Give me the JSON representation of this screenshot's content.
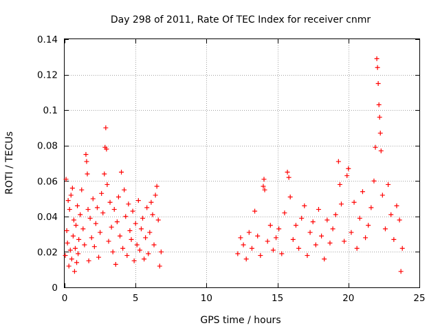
{
  "chart_data": {
    "type": "scatter",
    "title": "Day 298 of 2011, Rate Of TEC Index for receiver cnmr",
    "xlabel": "GPS time / hours",
    "ylabel": "ROTI / TECUs",
    "xlim": [
      0,
      25
    ],
    "ylim": [
      0,
      0.14
    ],
    "xticks": [
      0,
      5,
      10,
      15,
      20,
      25
    ],
    "yticks": [
      0,
      0.02,
      0.04,
      0.06,
      0.08,
      0.1,
      0.12,
      0.14
    ],
    "xtick_labels": [
      "0",
      "5",
      "10",
      "15",
      "20",
      "25"
    ],
    "ytick_labels": [
      "0",
      "0.02",
      "0.04",
      "0.06",
      "0.08",
      "0.1",
      "0.12",
      "0.14"
    ],
    "grid": true,
    "marker": "+",
    "series": [
      {
        "color": "#ff0000",
        "points": [
          [
            0.05,
            0.018
          ],
          [
            0.1,
            0.061
          ],
          [
            0.15,
            0.032
          ],
          [
            0.2,
            0.025
          ],
          [
            0.25,
            0.049
          ],
          [
            0.3,
            0.012
          ],
          [
            0.35,
            0.044
          ],
          [
            0.4,
            0.021
          ],
          [
            0.45,
            0.052
          ],
          [
            0.5,
            0.016
          ],
          [
            0.55,
            0.056
          ],
          [
            0.6,
            0.029
          ],
          [
            0.65,
            0.038
          ],
          [
            0.7,
            0.009
          ],
          [
            0.75,
            0.022
          ],
          [
            0.8,
            0.035
          ],
          [
            0.85,
            0.014
          ],
          [
            0.9,
            0.046
          ],
          [
            0.95,
            0.019
          ],
          [
            1.0,
            0.027
          ],
          [
            1.1,
            0.041
          ],
          [
            1.2,
            0.055
          ],
          [
            1.3,
            0.033
          ],
          [
            1.4,
            0.024
          ],
          [
            1.5,
            0.075
          ],
          [
            1.55,
            0.071
          ],
          [
            1.6,
            0.064
          ],
          [
            1.65,
            0.044
          ],
          [
            1.7,
            0.015
          ],
          [
            1.8,
            0.039
          ],
          [
            1.9,
            0.028
          ],
          [
            2.0,
            0.05
          ],
          [
            2.1,
            0.023
          ],
          [
            2.2,
            0.036
          ],
          [
            2.3,
            0.045
          ],
          [
            2.4,
            0.017
          ],
          [
            2.5,
            0.031
          ],
          [
            2.6,
            0.053
          ],
          [
            2.7,
            0.042
          ],
          [
            2.8,
            0.064
          ],
          [
            2.85,
            0.079
          ],
          [
            2.9,
            0.09
          ],
          [
            2.95,
            0.078
          ],
          [
            3.0,
            0.058
          ],
          [
            3.1,
            0.026
          ],
          [
            3.2,
            0.048
          ],
          [
            3.3,
            0.034
          ],
          [
            3.4,
            0.02
          ],
          [
            3.5,
            0.044
          ],
          [
            3.6,
            0.013
          ],
          [
            3.7,
            0.037
          ],
          [
            3.8,
            0.051
          ],
          [
            3.9,
            0.029
          ],
          [
            4.0,
            0.065
          ],
          [
            4.1,
            0.022
          ],
          [
            4.2,
            0.055
          ],
          [
            4.3,
            0.04
          ],
          [
            4.4,
            0.018
          ],
          [
            4.5,
            0.047
          ],
          [
            4.6,
            0.032
          ],
          [
            4.7,
            0.027
          ],
          [
            4.8,
            0.043
          ],
          [
            4.9,
            0.015
          ],
          [
            5.0,
            0.036
          ],
          [
            5.1,
            0.024
          ],
          [
            5.2,
            0.049
          ],
          [
            5.3,
            0.021
          ],
          [
            5.4,
            0.033
          ],
          [
            5.5,
            0.039
          ],
          [
            5.6,
            0.016
          ],
          [
            5.7,
            0.028
          ],
          [
            5.8,
            0.045
          ],
          [
            5.9,
            0.019
          ],
          [
            6.0,
            0.031
          ],
          [
            6.1,
            0.048
          ],
          [
            6.2,
            0.041
          ],
          [
            6.3,
            0.024
          ],
          [
            6.4,
            0.052
          ],
          [
            6.5,
            0.057
          ],
          [
            6.6,
            0.038
          ],
          [
            6.7,
            0.012
          ],
          [
            6.8,
            0.02
          ],
          [
            12.2,
            0.019
          ],
          [
            12.4,
            0.028
          ],
          [
            12.6,
            0.024
          ],
          [
            12.8,
            0.016
          ],
          [
            13.0,
            0.031
          ],
          [
            13.2,
            0.022
          ],
          [
            13.4,
            0.043
          ],
          [
            13.6,
            0.029
          ],
          [
            13.8,
            0.018
          ],
          [
            14.0,
            0.057
          ],
          [
            14.05,
            0.061
          ],
          [
            14.1,
            0.055
          ],
          [
            14.3,
            0.026
          ],
          [
            14.5,
            0.035
          ],
          [
            14.7,
            0.021
          ],
          [
            14.9,
            0.028
          ],
          [
            15.1,
            0.033
          ],
          [
            15.3,
            0.019
          ],
          [
            15.5,
            0.042
          ],
          [
            15.7,
            0.065
          ],
          [
            15.8,
            0.062
          ],
          [
            15.9,
            0.051
          ],
          [
            16.1,
            0.027
          ],
          [
            16.3,
            0.035
          ],
          [
            16.5,
            0.022
          ],
          [
            16.7,
            0.039
          ],
          [
            16.9,
            0.046
          ],
          [
            17.1,
            0.018
          ],
          [
            17.3,
            0.031
          ],
          [
            17.5,
            0.037
          ],
          [
            17.7,
            0.024
          ],
          [
            17.9,
            0.044
          ],
          [
            18.1,
            0.029
          ],
          [
            18.3,
            0.016
          ],
          [
            18.5,
            0.038
          ],
          [
            18.7,
            0.025
          ],
          [
            18.9,
            0.033
          ],
          [
            19.1,
            0.041
          ],
          [
            19.3,
            0.071
          ],
          [
            19.4,
            0.058
          ],
          [
            19.5,
            0.047
          ],
          [
            19.7,
            0.026
          ],
          [
            19.9,
            0.063
          ],
          [
            20.0,
            0.067
          ],
          [
            20.2,
            0.031
          ],
          [
            20.4,
            0.048
          ],
          [
            20.6,
            0.022
          ],
          [
            20.8,
            0.039
          ],
          [
            21.0,
            0.054
          ],
          [
            21.2,
            0.028
          ],
          [
            21.4,
            0.035
          ],
          [
            21.6,
            0.045
          ],
          [
            21.8,
            0.06
          ],
          [
            21.9,
            0.079
          ],
          [
            22.0,
            0.129
          ],
          [
            22.05,
            0.124
          ],
          [
            22.1,
            0.115
          ],
          [
            22.15,
            0.103
          ],
          [
            22.2,
            0.096
          ],
          [
            22.25,
            0.087
          ],
          [
            22.3,
            0.077
          ],
          [
            22.4,
            0.052
          ],
          [
            22.6,
            0.033
          ],
          [
            22.8,
            0.058
          ],
          [
            23.0,
            0.041
          ],
          [
            23.2,
            0.027
          ],
          [
            23.4,
            0.046
          ],
          [
            23.6,
            0.038
          ],
          [
            23.7,
            0.009
          ],
          [
            23.8,
            0.022
          ]
        ]
      }
    ]
  }
}
